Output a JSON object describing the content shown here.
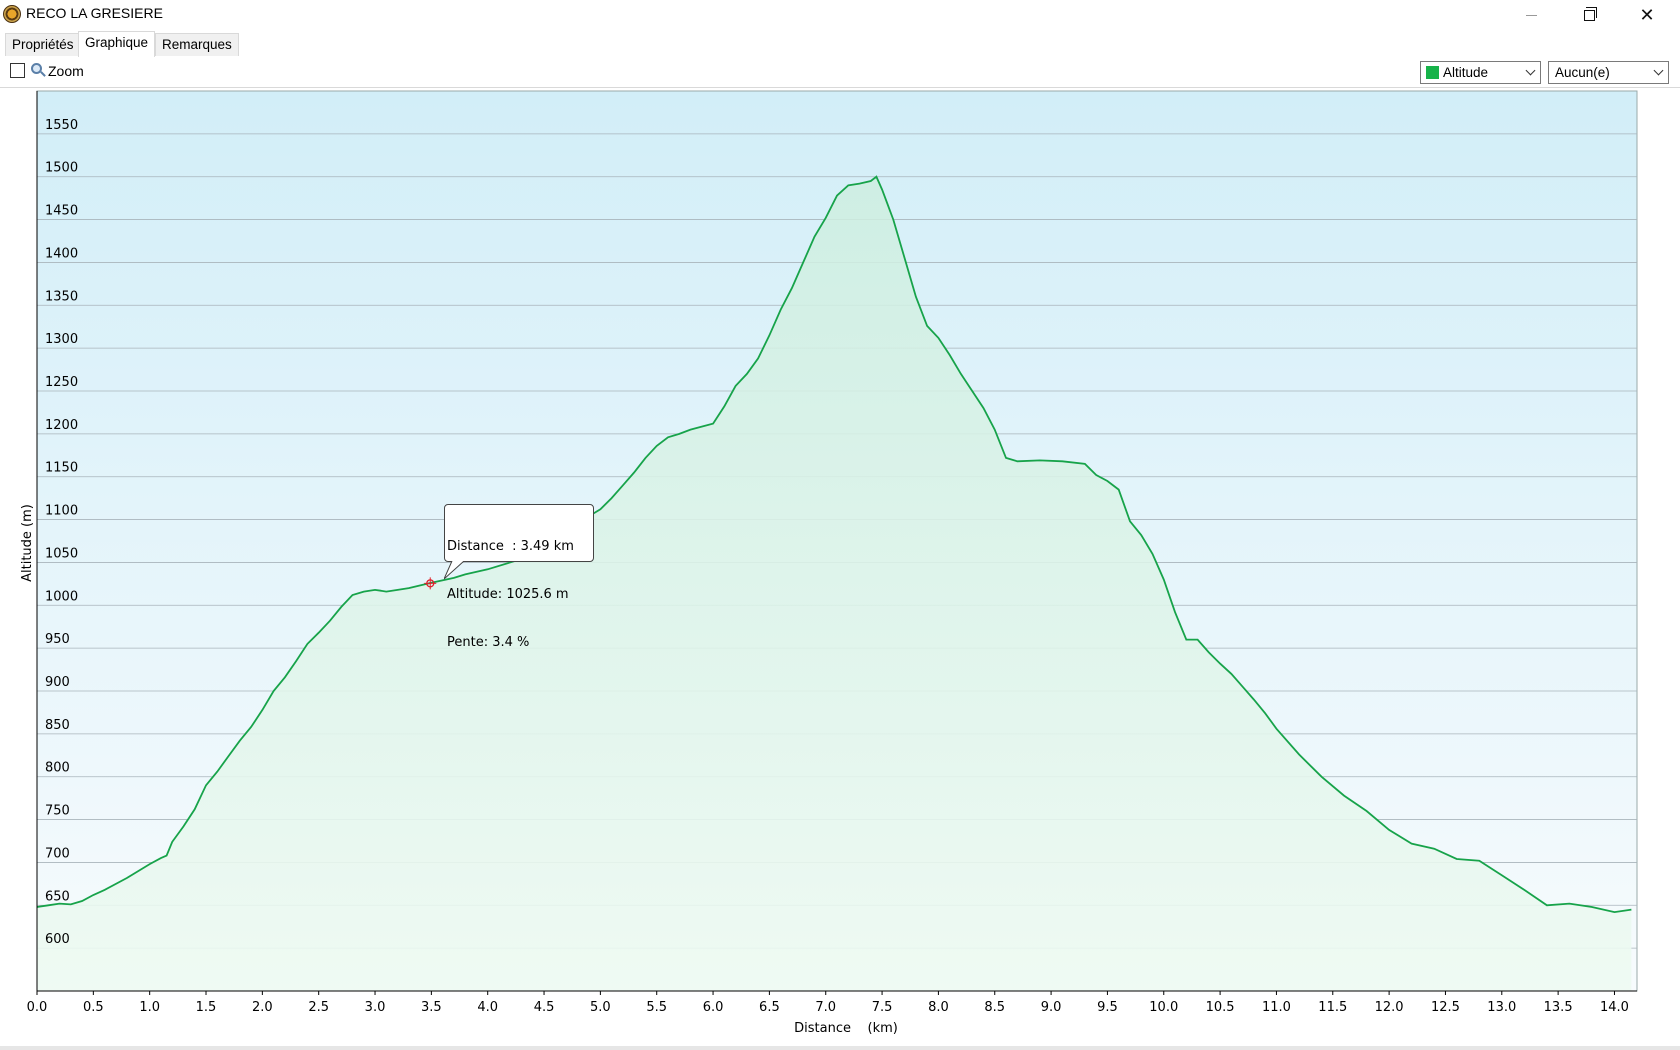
{
  "window": {
    "title": "RECO LA GRESIERE",
    "minimize": "—",
    "maximize": "❐",
    "close": "✕"
  },
  "tabs": [
    {
      "label": "Propriétés",
      "active": false
    },
    {
      "label": "Graphique",
      "active": true
    },
    {
      "label": "Remarques",
      "active": false
    }
  ],
  "toolbar": {
    "zoom_label": "Zoom",
    "zoom_checked": false,
    "series_select": {
      "value": "Altitude",
      "color": "#17b34a"
    },
    "second_select": {
      "value": "Aucun(e)"
    }
  },
  "tooltip": {
    "line1": "Distance  : 3.49 km",
    "line2": "Altitude: 1025.6 m",
    "line3": "Pente: 3.4 %"
  },
  "chart_data": {
    "type": "area",
    "xlabel": "Distance    (km)",
    "ylabel": "Altitude (m)",
    "xlim": [
      0,
      14.2
    ],
    "ylim": [
      550,
      1600
    ],
    "x_ticks": [
      "0.0",
      "0.5",
      "1.0",
      "1.5",
      "2.0",
      "2.5",
      "3.0",
      "3.5",
      "4.0",
      "4.5",
      "5.0",
      "5.5",
      "6.0",
      "6.5",
      "7.0",
      "7.5",
      "8.0",
      "8.5",
      "9.0",
      "9.5",
      "10.0",
      "10.5",
      "11.0",
      "11.5",
      "12.0",
      "12.5",
      "13.0",
      "13.5",
      "14.0"
    ],
    "y_ticks": [
      "600",
      "650",
      "700",
      "750",
      "800",
      "850",
      "900",
      "950",
      "1000",
      "1050",
      "1100",
      "1150",
      "1200",
      "1250",
      "1300",
      "1350",
      "1400",
      "1450",
      "1500",
      "1550"
    ],
    "grid": true,
    "line_color": "#17a34a",
    "series": [
      {
        "name": "Altitude",
        "x": [
          0.0,
          0.1,
          0.2,
          0.3,
          0.4,
          0.5,
          0.6,
          0.8,
          1.0,
          1.1,
          1.15,
          1.2,
          1.3,
          1.4,
          1.5,
          1.6,
          1.7,
          1.8,
          1.9,
          2.0,
          2.1,
          2.2,
          2.3,
          2.4,
          2.5,
          2.6,
          2.7,
          2.8,
          2.9,
          3.0,
          3.05,
          3.1,
          3.2,
          3.3,
          3.49,
          3.7,
          3.8,
          4.0,
          4.2,
          4.4,
          4.6,
          4.8,
          4.9,
          5.0,
          5.1,
          5.2,
          5.3,
          5.4,
          5.5,
          5.6,
          5.7,
          5.8,
          6.0,
          6.1,
          6.2,
          6.3,
          6.4,
          6.5,
          6.6,
          6.7,
          6.8,
          6.9,
          7.0,
          7.1,
          7.2,
          7.3,
          7.4,
          7.45,
          7.5,
          7.6,
          7.7,
          7.8,
          7.9,
          8.0,
          8.1,
          8.2,
          8.3,
          8.4,
          8.5,
          8.6,
          8.7,
          8.9,
          9.1,
          9.3,
          9.4,
          9.5,
          9.6,
          9.7,
          9.8,
          9.9,
          10.0,
          10.1,
          10.2,
          10.3,
          10.4,
          10.5,
          10.6,
          10.7,
          10.8,
          10.9,
          11.0,
          11.2,
          11.4,
          11.6,
          11.8,
          12.0,
          12.2,
          12.4,
          12.6,
          12.8,
          13.0,
          13.2,
          13.4,
          13.6,
          13.8,
          14.0,
          14.15
        ],
        "y": [
          648,
          650,
          652,
          651,
          655,
          662,
          668,
          682,
          698,
          705,
          708,
          724,
          742,
          762,
          790,
          806,
          824,
          842,
          858,
          878,
          900,
          916,
          935,
          955,
          968,
          982,
          998,
          1012,
          1016,
          1018,
          1017,
          1016,
          1018,
          1020,
          1026,
          1032,
          1036,
          1042,
          1050,
          1058,
          1070,
          1100,
          1104,
          1112,
          1125,
          1140,
          1155,
          1172,
          1186,
          1196,
          1200,
          1205,
          1212,
          1232,
          1256,
          1270,
          1288,
          1315,
          1345,
          1370,
          1400,
          1430,
          1452,
          1478,
          1490,
          1492,
          1495,
          1500,
          1485,
          1450,
          1405,
          1360,
          1326,
          1312,
          1292,
          1270,
          1250,
          1230,
          1205,
          1172,
          1168,
          1169,
          1168,
          1165,
          1152,
          1145,
          1135,
          1098,
          1082,
          1060,
          1030,
          992,
          960,
          960,
          945,
          932,
          920,
          905,
          890,
          874,
          856,
          826,
          800,
          778,
          760,
          738,
          722,
          716,
          704,
          702,
          685,
          668,
          650,
          652,
          648,
          642,
          645
        ]
      }
    ],
    "marker": {
      "x": 3.49,
      "y": 1025.6,
      "color": "#e0202a"
    }
  }
}
